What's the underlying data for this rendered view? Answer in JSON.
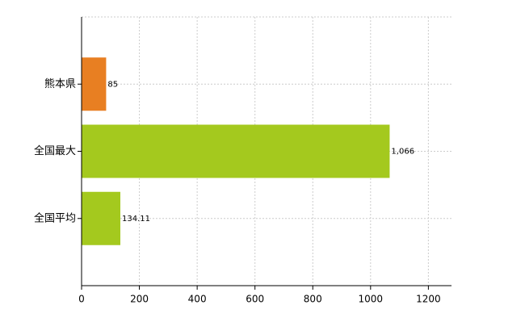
{
  "chart_data": {
    "type": "bar",
    "orientation": "horizontal",
    "categories": [
      "熊本県",
      "全国最大",
      "全国平均"
    ],
    "values": [
      85,
      1066,
      134.11
    ],
    "value_labels": [
      "85",
      "1,066",
      "134.11"
    ],
    "colors": [
      "#e87f22",
      "#a4c91e",
      "#a4c91e"
    ],
    "xlim": [
      0,
      1280
    ],
    "xticks": [
      0,
      200,
      400,
      600,
      800,
      1000,
      1200
    ],
    "grid": true
  }
}
